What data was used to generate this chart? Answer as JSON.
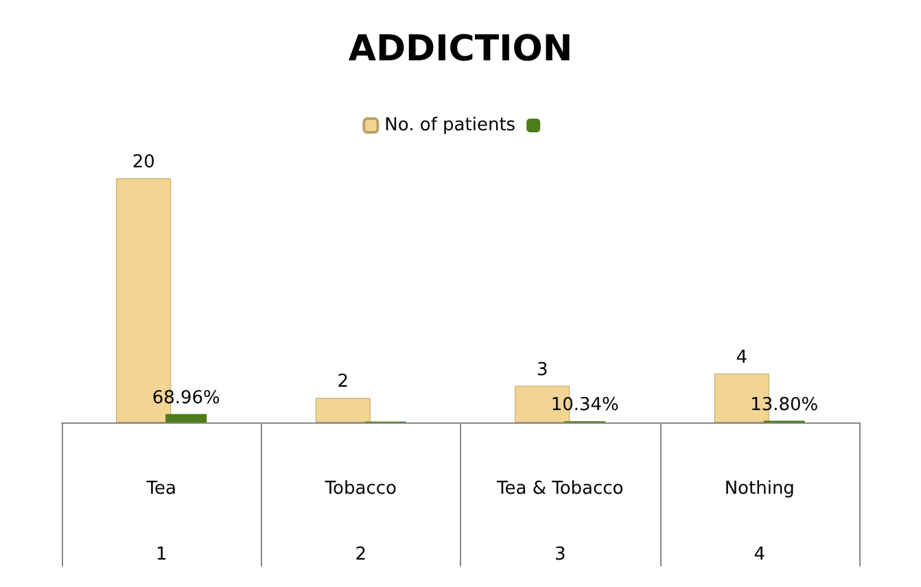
{
  "chart_data": {
    "type": "bar",
    "title": "ADDICTION",
    "categories": [
      "Tea",
      "Tobacco",
      "Tea & Tobacco",
      "Nothing"
    ],
    "series": [
      {
        "name": "No. of patients",
        "color": "#f3d593",
        "values": [
          20,
          2,
          3,
          4
        ],
        "data_labels": true
      },
      {
        "color": "#4e7d1c",
        "values": [
          0.6896,
          0.069,
          0.1034,
          0.138
        ],
        "value_labels": [
          "68.96%",
          null,
          "10.34%",
          "13.80%"
        ]
      }
    ],
    "annotations": [
      "1",
      "2",
      "3",
      "4"
    ],
    "legend": "top",
    "grid": false
  }
}
